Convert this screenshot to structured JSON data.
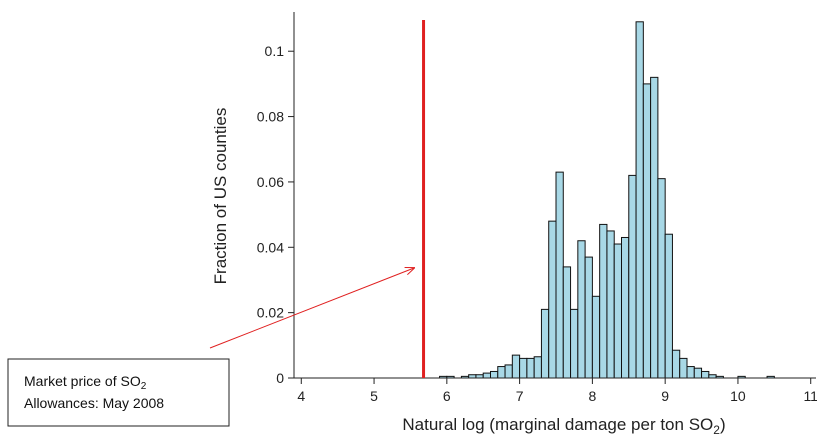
{
  "chart_data": {
    "type": "bar",
    "subtype": "histogram",
    "xlabel": "Natural log (marginal damage per ton SO",
    "xlabel_sub": "2",
    "xlabel_close": ")",
    "ylabel": "Fraction of US counties",
    "xlim": [
      3.9,
      11.1
    ],
    "ylim": [
      0,
      0.112
    ],
    "xticks": [
      4,
      5,
      6,
      7,
      8,
      9,
      10,
      11
    ],
    "yticks": [
      0,
      0.02,
      0.04,
      0.06,
      0.08,
      0.1
    ],
    "ytick_labels": [
      "0",
      "0.02",
      "0.04",
      "0.06",
      "0.08",
      "0.1"
    ],
    "bin_width": 0.1,
    "bars_color": "#a8d8e6",
    "bar_edge": "#111111",
    "bins": [
      {
        "x0": 5.9,
        "y": 0.0005
      },
      {
        "x0": 6.0,
        "y": 0.0005
      },
      {
        "x0": 6.2,
        "y": 0.0005
      },
      {
        "x0": 6.3,
        "y": 0.001
      },
      {
        "x0": 6.4,
        "y": 0.001
      },
      {
        "x0": 6.5,
        "y": 0.0015
      },
      {
        "x0": 6.6,
        "y": 0.002
      },
      {
        "x0": 6.7,
        "y": 0.0035
      },
      {
        "x0": 6.8,
        "y": 0.004
      },
      {
        "x0": 6.9,
        "y": 0.007
      },
      {
        "x0": 7.0,
        "y": 0.006
      },
      {
        "x0": 7.1,
        "y": 0.006
      },
      {
        "x0": 7.2,
        "y": 0.0065
      },
      {
        "x0": 7.3,
        "y": 0.021
      },
      {
        "x0": 7.4,
        "y": 0.048
      },
      {
        "x0": 7.5,
        "y": 0.063
      },
      {
        "x0": 7.6,
        "y": 0.034
      },
      {
        "x0": 7.7,
        "y": 0.021
      },
      {
        "x0": 7.8,
        "y": 0.042
      },
      {
        "x0": 7.9,
        "y": 0.037
      },
      {
        "x0": 8.0,
        "y": 0.025
      },
      {
        "x0": 8.1,
        "y": 0.047
      },
      {
        "x0": 8.2,
        "y": 0.045
      },
      {
        "x0": 8.3,
        "y": 0.041
      },
      {
        "x0": 8.4,
        "y": 0.043
      },
      {
        "x0": 8.5,
        "y": 0.062
      },
      {
        "x0": 8.6,
        "y": 0.109
      },
      {
        "x0": 8.7,
        "y": 0.09
      },
      {
        "x0": 8.8,
        "y": 0.092
      },
      {
        "x0": 8.9,
        "y": 0.061
      },
      {
        "x0": 9.0,
        "y": 0.044
      },
      {
        "x0": 9.1,
        "y": 0.0085
      },
      {
        "x0": 9.2,
        "y": 0.006
      },
      {
        "x0": 9.3,
        "y": 0.0035
      },
      {
        "x0": 9.4,
        "y": 0.003
      },
      {
        "x0": 9.5,
        "y": 0.002
      },
      {
        "x0": 9.6,
        "y": 0.001
      },
      {
        "x0": 9.7,
        "y": 0.0005
      },
      {
        "x0": 10.0,
        "y": 0.0005
      },
      {
        "x0": 10.4,
        "y": 0.0005
      }
    ],
    "reference_line": {
      "x": 5.68,
      "color": "#e02020"
    },
    "annotation": {
      "line1": "Market price of SO",
      "line1_sub": "2",
      "line2": "Allowances: May 2008",
      "arrow_color": "#e02020"
    }
  }
}
